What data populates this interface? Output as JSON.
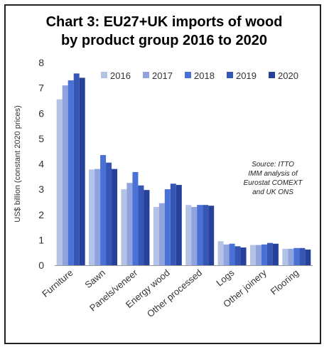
{
  "chart_data": {
    "type": "bar",
    "title_line1": "Chart 3: EU27+UK imports of wood",
    "title_line2": "by product group 2016 to 2020",
    "ylabel": "US$ billion (constant 2020 prices)",
    "xlabel": "",
    "ylim": [
      0,
      8
    ],
    "yticks": [
      "0",
      "1",
      "2",
      "3",
      "4",
      "5",
      "6",
      "7",
      "8"
    ],
    "grid": false,
    "legend_position": "top-right",
    "categories": [
      "Furniture",
      "Sawn",
      "Panels/veneer",
      "Energy wood",
      "Other processed",
      "Logs",
      "Other joinery",
      "Flooring"
    ],
    "series": [
      {
        "name": "2016",
        "color": "#b4c2e6",
        "values": [
          6.55,
          3.78,
          3.0,
          2.3,
          2.38,
          0.95,
          0.8,
          0.65
        ]
      },
      {
        "name": "2017",
        "color": "#8fa4de",
        "values": [
          7.1,
          3.8,
          3.25,
          2.45,
          2.3,
          0.82,
          0.8,
          0.65
        ]
      },
      {
        "name": "2018",
        "color": "#4a71d6",
        "values": [
          7.3,
          4.35,
          3.68,
          3.0,
          2.38,
          0.85,
          0.82,
          0.68
        ]
      },
      {
        "name": "2019",
        "color": "#3656b5",
        "values": [
          7.57,
          4.05,
          3.15,
          3.22,
          2.38,
          0.75,
          0.88,
          0.68
        ]
      },
      {
        "name": "2020",
        "color": "#25419a",
        "values": [
          7.4,
          3.8,
          2.97,
          3.17,
          2.35,
          0.7,
          0.85,
          0.62
        ]
      }
    ],
    "annotation": [
      "Source: ITTO",
      "IMM analysis of",
      "Eurostat COMEXT",
      "and UK ONS"
    ]
  }
}
